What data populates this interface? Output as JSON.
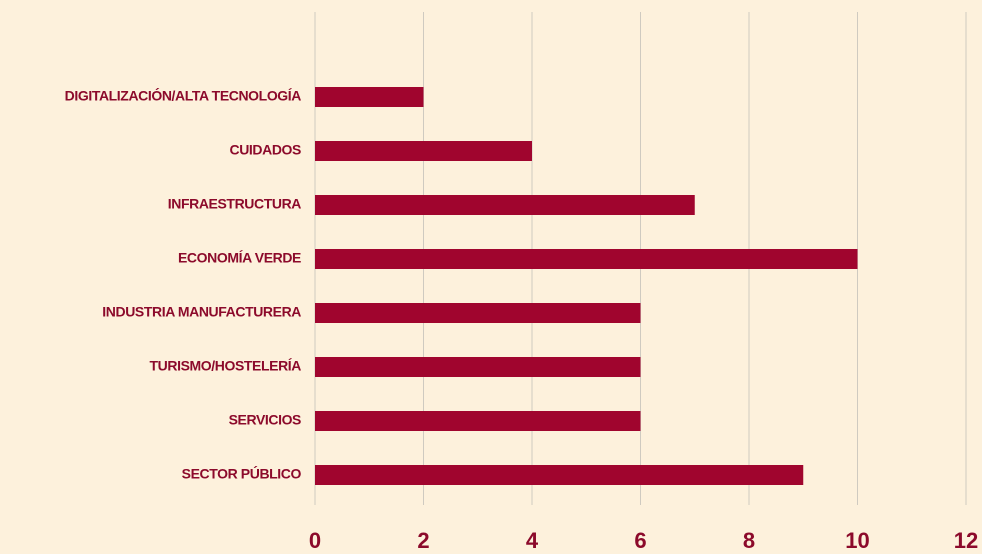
{
  "chart_data": {
    "type": "barh",
    "categories": [
      "DIGITALIZACIÓN/ALTA TECNOLOGÍA",
      "CUIDADOS",
      "INFRAESTRUCTURA",
      "ECONOMÍA VERDE",
      "INDUSTRIA MANUFACTURERA",
      "TURISMO/HOSTELERÍA",
      "SERVICIOS",
      "SECTOR PÚBLICO"
    ],
    "values": [
      2,
      4,
      7,
      10,
      6,
      6,
      6,
      9
    ],
    "color": "#a0052e",
    "xlim": [
      0,
      12
    ],
    "xticks": [
      0,
      2,
      4,
      6,
      8,
      10,
      12
    ],
    "grid": true
  }
}
